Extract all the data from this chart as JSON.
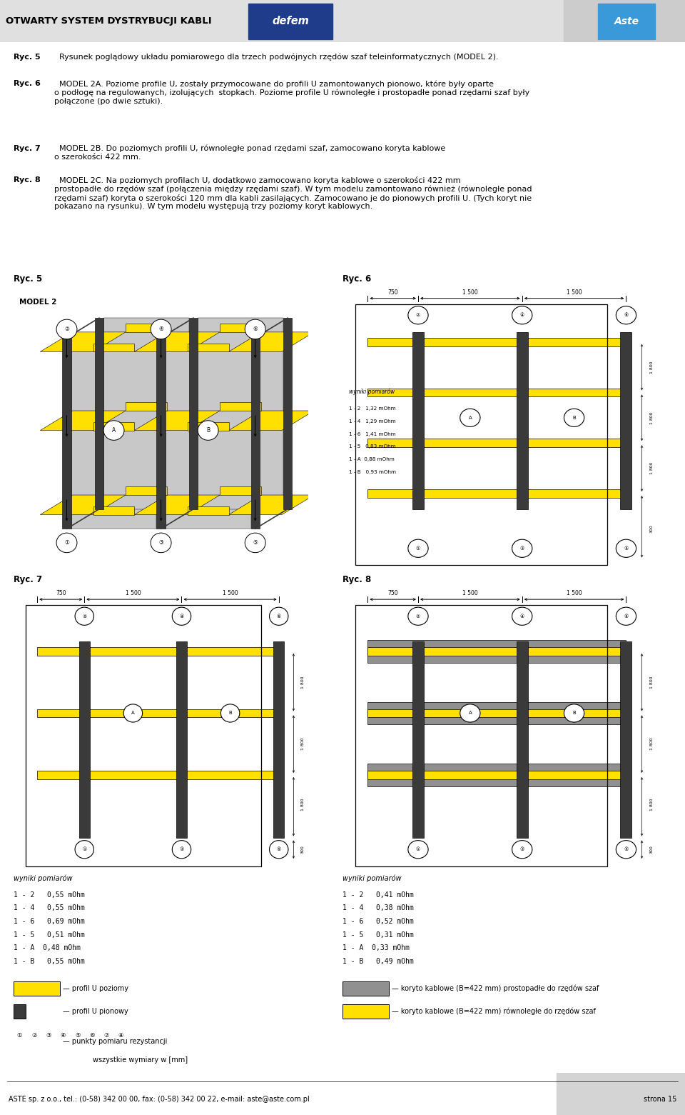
{
  "white": "#ffffff",
  "black": "#000000",
  "yellow": "#FFE000",
  "dark_gray": "#3a3a3a",
  "gray": "#909090",
  "light_gray": "#d0d0d0",
  "header_bg": "#e0e0e0",
  "header_text": "OTWARTY SYSTEM DYSTRYBUCJI KABLI",
  "defem_bg": "#1e3c8a",
  "defem_text": "defem",
  "aste_bg": "#3a9ad9",
  "aste_text": "Aste",
  "footer_text": "ASTE sp. z o.o., tel.: (0-58) 342 00 00, fax: (0-58) 342 00 22, e-mail: aste@aste.com.pl",
  "footer_page": "strona 15",
  "body_texts": [
    "Ryc. 5",
    "  Rysunek poglądowy układu pomiarowego dla trzech podwójnych rzędów szaf teleinformatycznych (MODEL 2).",
    "Ryc. 6",
    "  MODEL 2A. Poziome profile U, zostały przymocowane do profili U zamontowanych pionowo, które były oparte\no podłogę na regulowanych, izolujących  stopkach. Poziome profile U równoległe i prostopadłe ponad rzędami szaf były\npołączone (po dwie sztuki).",
    "Ryc. 7",
    "  MODEL 2B. Do poziomych profili U, równoległe ponad rzędami szaf, zamocowano koryta kablowe\no szerokości 422 mm.",
    "Ryc. 8",
    "  MODEL 2C. Na poziomych profilach U, dodatkowo zamocowano koryta kablowe o szerokości 422 mm\nprostopadłe do rzędów szaf (połączenia między rzędami szaf). W tym modelu zamontowano również (równoległe ponad\nrzędami szaf) koryta o szerokości 120 mm dla kabli zasilających. Zamocowano je do pionowych profili U. (Tych koryt nie\npokazano na rysunku). W tym modelu występują trzy poziomy koryt kablowych."
  ],
  "meas6_title": "wyniki pomiarów",
  "meas6": [
    "1 - 2   1,32 mOhm",
    "1 - 4   1,29 mOhm",
    "1 - 6   1,41 mOhm",
    "1 - 5   0,83 mOhm",
    "1 - A  0,88 mOhm",
    "1 - B   0,93 mOhm"
  ],
  "meas7_title": "wyniki pomiarów",
  "meas7": [
    "1 - 2   0,55 mOhm",
    "1 - 4   0,55 mOhm",
    "1 - 6   0,69 mOhm",
    "1 - 5   0,51 mOhm",
    "1 - A  0,48 mOhm",
    "1 - B   0,55 mOhm"
  ],
  "meas8_title": "wyniki pomiarów",
  "meas8": [
    "1 - 2   0,41 mOhm",
    "1 - 4   0,38 mOhm",
    "1 - 6   0,52 mOhm",
    "1 - 5   0,31 mOhm",
    "1 - A  0,33 mOhm",
    "1 - B   0,49 mOhm"
  ],
  "dim_top": [
    "750",
    "1 500",
    "1 500"
  ],
  "dim_side": [
    "1 800",
    "1 800",
    "1 800"
  ],
  "dim_bot": "300",
  "leg_left": [
    {
      "label": "profil U poziomy",
      "color": "#FFE000"
    },
    {
      "label": "profil U pionowy",
      "color": "#3a3a3a"
    },
    {
      "label": "punkty pomiaru rezystancji",
      "color": "#000000"
    },
    {
      "label": "wszystkie wymiary w [mm]",
      "color": "#000000"
    }
  ],
  "leg_right": [
    {
      "label": "koryto kablowe (B=422 mm) prostopadłe do rzędów szaf",
      "color": "#909090"
    },
    {
      "label": "koryto kablowe (B=422 mm) równoległe do rzędów szaf",
      "color": "#FFE000"
    }
  ]
}
